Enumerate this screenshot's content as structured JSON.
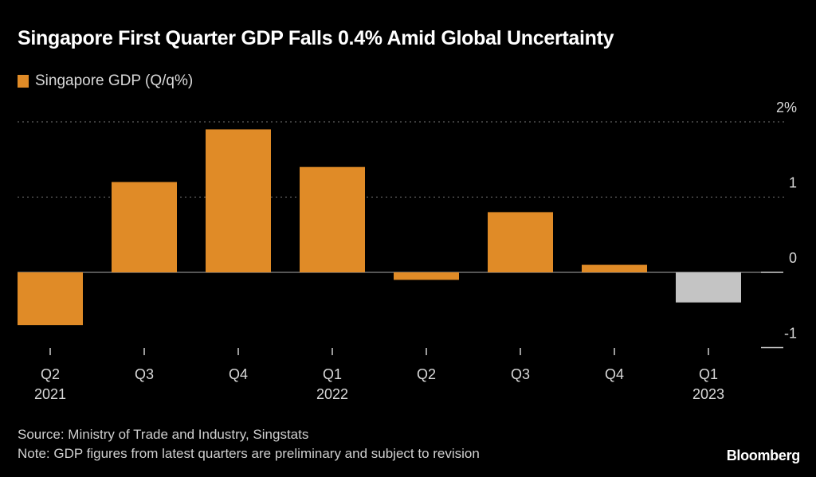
{
  "title": "Singapore First Quarter GDP Falls 0.4% Amid Global Uncertainty",
  "legend": {
    "label": "Singapore GDP (Q/q%)",
    "color": "#e08b27"
  },
  "footer": {
    "source": "Source: Ministry of Trade and Industry, Singstats",
    "note": "Note: GDP figures from latest quarters are preliminary and subject to revision"
  },
  "brand": "Bloomberg",
  "chart_data": {
    "type": "bar",
    "title": "Singapore First Quarter GDP Falls 0.4% Amid Global Uncertainty",
    "xlabel": "",
    "ylabel": "",
    "categories": [
      "Q2 2021",
      "Q3 2021",
      "Q4 2021",
      "Q1 2022",
      "Q2 2022",
      "Q3 2022",
      "Q4 2022",
      "Q1 2023"
    ],
    "x_tick_labels": [
      {
        "q": "Q2",
        "year": "2021"
      },
      {
        "q": "Q3",
        "year": ""
      },
      {
        "q": "Q4",
        "year": ""
      },
      {
        "q": "Q1",
        "year": "2022"
      },
      {
        "q": "Q2",
        "year": ""
      },
      {
        "q": "Q3",
        "year": ""
      },
      {
        "q": "Q4",
        "year": ""
      },
      {
        "q": "Q1",
        "year": "2023"
      }
    ],
    "series": [
      {
        "name": "Singapore GDP (Q/q%)",
        "values": [
          -0.7,
          1.2,
          1.9,
          1.4,
          -0.1,
          0.8,
          0.1,
          -0.4
        ]
      }
    ],
    "highlight_index": 7,
    "colors": {
      "bar": "#e08b27",
      "highlight": "#c4c4c4",
      "grid": "#777777",
      "zero_line": "#888888",
      "tick_label": "#d8d8d8"
    },
    "y_ticks": [
      {
        "value": 2,
        "label": "2%"
      },
      {
        "value": 1,
        "label": "1"
      },
      {
        "value": 0,
        "label": "0"
      },
      {
        "value": -1,
        "label": "-1"
      }
    ],
    "ylim": [
      -1,
      2
    ],
    "grid": true,
    "legend_position": "top-left"
  }
}
